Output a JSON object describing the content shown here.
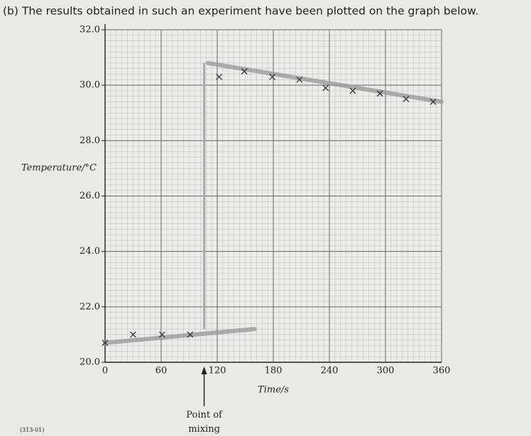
{
  "chart_data": {
    "type": "scatter",
    "title": "(b) The results obtained in such an experiment have been plotted on the graph below.",
    "x_label": "Time/s",
    "y_label": "Temperature/°C",
    "annotation": "Point of mixing",
    "footer": "(313-01)",
    "xlim": [
      0,
      360
    ],
    "xticks": [
      0,
      60,
      120,
      180,
      240,
      300,
      360
    ],
    "ylim": [
      20,
      32
    ],
    "yticks": [
      {
        "value": 20,
        "label": "20.0"
      },
      {
        "value": 22,
        "label": "22.0"
      },
      {
        "value": 24,
        "label": "24.0"
      },
      {
        "value": 26,
        "label": "26.0"
      },
      {
        "value": 28,
        "label": "28.0"
      },
      {
        "value": 30,
        "label": "30.0"
      },
      {
        "value": 32,
        "label": "32.0"
      }
    ],
    "grid": true,
    "color": "#333333",
    "x": [
      0,
      30,
      61,
      91,
      122,
      149,
      179,
      208,
      236,
      265,
      294,
      322,
      351
    ],
    "values": [
      20.7,
      21.0,
      21.0,
      21.0,
      30.3,
      30.5,
      30.3,
      30.2,
      29.9,
      29.8,
      29.7,
      29.5,
      29.4
    ],
    "mixing_time": 106,
    "fit_lines": [
      {
        "color": "#9a9a9a",
        "x": [
          0,
          160
        ],
        "values": [
          20.7,
          21.2
        ]
      },
      {
        "color": "#9a9a9a",
        "x": [
          110,
          360
        ],
        "values": [
          30.8,
          29.4
        ]
      }
    ]
  }
}
